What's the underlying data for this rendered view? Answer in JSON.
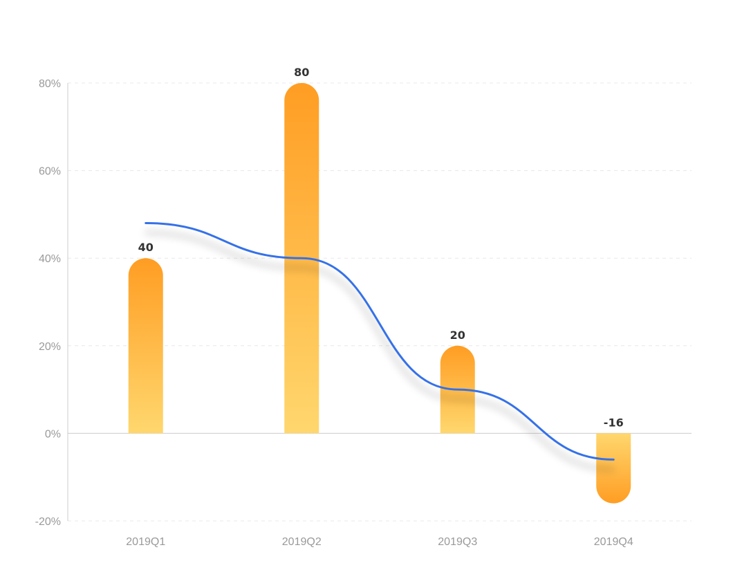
{
  "colors": {
    "bar_top": "#ff9d23",
    "bar_bottom": "#ffd76e",
    "line": "#3571e8",
    "grid": "#e8e8e8",
    "axis": "#cccccc",
    "tick_text": "#999999",
    "label_text": "#333333"
  },
  "chart_data": {
    "type": "bar",
    "categories": [
      "2019Q1",
      "2019Q2",
      "2019Q3",
      "2019Q4"
    ],
    "series": [
      {
        "type": "bar",
        "values": [
          40,
          80,
          20,
          -16
        ],
        "data_labels": [
          "40",
          "80",
          "20",
          "-16"
        ]
      },
      {
        "type": "line",
        "smooth": true,
        "values": [
          48,
          40,
          10,
          -6
        ]
      }
    ],
    "y_ticks": [
      -20,
      0,
      20,
      40,
      60,
      80
    ],
    "y_tick_labels": [
      "-20%",
      "0%",
      "20%",
      "40%",
      "60%",
      "80%"
    ],
    "ylim": [
      -20,
      80
    ],
    "grid": true,
    "legend": "none"
  }
}
